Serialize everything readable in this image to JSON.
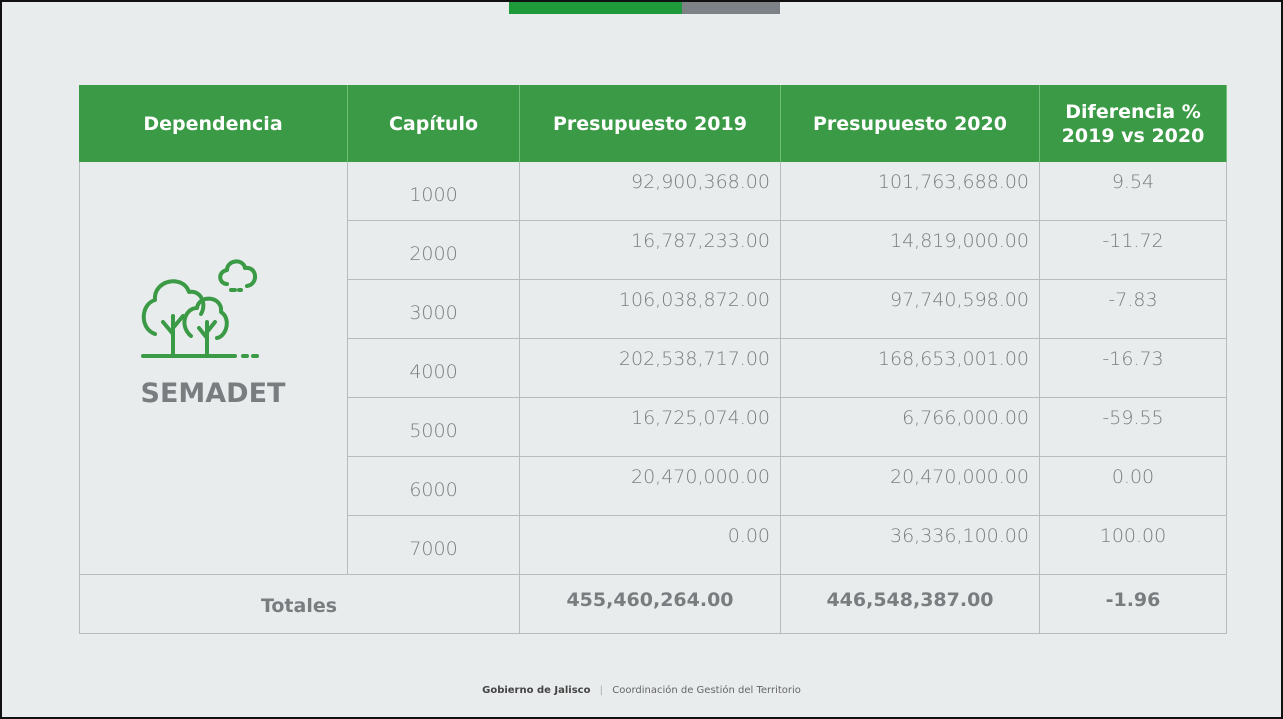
{
  "table": {
    "header": [
      "Dependencia",
      "Capítulo",
      "Presupuesto 2019",
      "Presupuesto 2020",
      "Diferencia % 2019 vs 2020"
    ],
    "dependencia": "SEMADET",
    "rows": [
      [
        "1000",
        "92,900,368.00",
        "101,763,688.00",
        "9.54"
      ],
      [
        "2000",
        "16,787,233.00",
        "14,819,000.00",
        "-11.72"
      ],
      [
        "3000",
        "106,038,872.00",
        "97,740,598.00",
        "-7.83"
      ],
      [
        "4000",
        "202,538,717.00",
        "168,653,001.00",
        "-16.73"
      ],
      [
        "5000",
        "16,725,074.00",
        "6,766,000.00",
        "-59.55"
      ],
      [
        "6000",
        "20,470,000.00",
        "20,470,000.00",
        "0.00"
      ],
      [
        "7000",
        "0.00",
        "36,336,100.00",
        "100.00"
      ]
    ],
    "totals": [
      "Totales",
      "455,460,264.00",
      "446,548,387.00",
      "-1.96"
    ]
  },
  "footer": {
    "left": "Gobierno de Jalisco",
    "right": "Coordinación de Gestión del Territorio"
  }
}
